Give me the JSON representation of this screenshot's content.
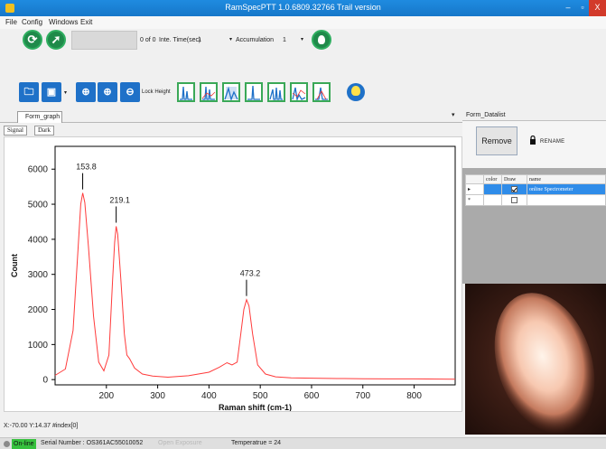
{
  "window": {
    "title": "RamSpecPTT 1.0.6809.32766 Trail version",
    "min_label": "–",
    "max_label": "▫",
    "close_label": "X"
  },
  "menu": [
    "File",
    "Config",
    "Windows",
    "Exit"
  ],
  "toolbar1": {
    "counter": "0 of 0",
    "inte_time_label": "Inte. Time(sec)",
    "inte_time_value": "1",
    "accumulation_label": "Accumulation",
    "accumulation_value": "1"
  },
  "toolbar2": {
    "lock_height_label": "Lock Height"
  },
  "graph_panel": {
    "doc_tab": "Form_graph",
    "tabs": [
      "Signal",
      "Dark"
    ]
  },
  "coords": "X:-70.00  Y:14.37  #index[0]",
  "status": {
    "online": "On-line",
    "serial": "Serial Number : OS361AC55010052",
    "open_exposure": "Open Exposure",
    "temperature": "Temperatrue = 24"
  },
  "datalist": {
    "header": "Form_Datalist",
    "remove_label": "Remove",
    "rename_label": "RENAME",
    "columns": [
      "color",
      "Draw",
      "name"
    ],
    "rows": [
      {
        "draw": true,
        "name": "online Spectrometer",
        "selected": true
      },
      {
        "draw": false,
        "name": "",
        "selected": false
      }
    ]
  },
  "chart_data": {
    "type": "line",
    "xlabel": "Raman shift (cm-1)",
    "ylabel": "Count",
    "xlim": [
      100,
      880
    ],
    "ylim": [
      -150,
      6650
    ],
    "xticks": [
      200,
      300,
      400,
      500,
      600,
      700,
      800
    ],
    "yticks": [
      0,
      1000,
      2000,
      3000,
      4000,
      5000,
      6000
    ],
    "line_color": "#ff3b3b",
    "series": [
      {
        "x": [
          100,
          120,
          135,
          145,
          150,
          153.8,
          158,
          165,
          175,
          185,
          195,
          205,
          212,
          216,
          219.1,
          222,
          228,
          235,
          240,
          245,
          255,
          270,
          290,
          320,
          360,
          400,
          420,
          435,
          445,
          455,
          462,
          468,
          473.2,
          478,
          485,
          495,
          510,
          530,
          560,
          600,
          650,
          700,
          750,
          800,
          850,
          880
        ],
        "y": [
          120,
          300,
          1400,
          3800,
          5000,
          5320,
          5050,
          3800,
          1800,
          500,
          250,
          700,
          2800,
          3900,
          4370,
          4150,
          2900,
          1300,
          700,
          600,
          330,
          160,
          100,
          70,
          110,
          210,
          350,
          480,
          420,
          500,
          1300,
          2000,
          2280,
          2100,
          1300,
          420,
          160,
          80,
          50,
          40,
          30,
          25,
          20,
          20,
          15,
          10
        ]
      }
    ],
    "annotations": [
      {
        "label": "153.8",
        "x": 153.8,
        "y": 5320
      },
      {
        "label": "219.1",
        "x": 219.1,
        "y": 4370
      },
      {
        "label": "473.2",
        "x": 473.2,
        "y": 2280
      }
    ]
  }
}
